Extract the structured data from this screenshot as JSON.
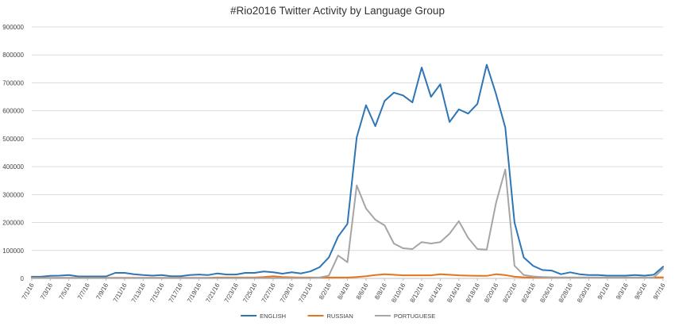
{
  "chart_data": {
    "type": "line",
    "title": "#Rio2016 Twitter Activity by Language Group",
    "xlabel": "",
    "ylabel": "",
    "ylim": [
      0,
      900000
    ],
    "yticks": [
      "0",
      "100000",
      "200000",
      "300000",
      "400000",
      "500000",
      "600000",
      "700000",
      "800000",
      "900000"
    ],
    "x": [
      "7/1/16",
      "7/2/16",
      "7/3/16",
      "7/4/16",
      "7/5/16",
      "7/6/16",
      "7/7/16",
      "7/8/16",
      "7/9/16",
      "7/10/16",
      "7/11/16",
      "7/12/16",
      "7/13/16",
      "7/14/16",
      "7/15/16",
      "7/16/16",
      "7/17/16",
      "7/18/16",
      "7/19/16",
      "7/20/16",
      "7/21/16",
      "7/22/16",
      "7/23/16",
      "7/24/16",
      "7/25/16",
      "7/26/16",
      "7/27/16",
      "7/28/16",
      "7/29/16",
      "7/30/16",
      "7/31/16",
      "8/1/16",
      "8/2/16",
      "8/3/16",
      "8/4/16",
      "8/5/16",
      "8/6/16",
      "8/7/16",
      "8/8/16",
      "8/9/16",
      "8/10/16",
      "8/11/16",
      "8/12/16",
      "8/13/16",
      "8/14/16",
      "8/15/16",
      "8/16/16",
      "8/17/16",
      "8/18/16",
      "8/19/16",
      "8/20/16",
      "8/21/16",
      "8/22/16",
      "8/23/16",
      "8/24/16",
      "8/25/16",
      "8/26/16",
      "8/27/16",
      "8/28/16",
      "8/29/16",
      "8/30/16",
      "8/31/16",
      "9/1/16",
      "9/2/16",
      "9/3/16",
      "9/4/16",
      "9/5/16",
      "9/6/16",
      "9/7/16"
    ],
    "xtick_labels": [
      "7/1/16",
      "7/3/16",
      "7/5/16",
      "7/7/16",
      "7/9/16",
      "7/11/16",
      "7/13/16",
      "7/15/16",
      "7/17/16",
      "7/19/16",
      "7/21/16",
      "7/23/16",
      "7/25/16",
      "7/27/16",
      "7/29/16",
      "7/31/16",
      "8/2/16",
      "8/4/16",
      "8/6/16",
      "8/8/16",
      "8/10/16",
      "8/12/16",
      "8/14/16",
      "8/16/16",
      "8/18/16",
      "8/20/16",
      "8/22/16",
      "8/24/16",
      "8/26/16",
      "8/28/16",
      "8/30/16",
      "9/1/16",
      "9/3/16",
      "9/5/16",
      "9/7/16"
    ],
    "series": [
      {
        "name": "ENGLISH",
        "color": "#2e75b6",
        "values": [
          6000,
          6000,
          9000,
          10000,
          12000,
          7000,
          7000,
          7000,
          7000,
          20000,
          20000,
          15000,
          12000,
          10000,
          12000,
          8000,
          8000,
          12000,
          14000,
          12000,
          18000,
          14000,
          14000,
          20000,
          20000,
          25000,
          22000,
          17000,
          22000,
          18000,
          25000,
          40000,
          75000,
          150000,
          195000,
          505000,
          620000,
          545000,
          635000,
          665000,
          655000,
          630000,
          755000,
          650000,
          695000,
          560000,
          605000,
          590000,
          625000,
          765000,
          660000,
          540000,
          200000,
          75000,
          45000,
          30000,
          28000,
          15000,
          22000,
          15000,
          12000,
          12000,
          10000,
          10000,
          10000,
          12000,
          10000,
          13000,
          42000
        ]
      },
      {
        "name": "RUSSIAN",
        "color": "#e8731a",
        "values": [
          2000,
          2000,
          2000,
          2000,
          2000,
          2000,
          2000,
          2000,
          2000,
          2000,
          2000,
          2000,
          2000,
          2000,
          2000,
          2000,
          2000,
          2000,
          2000,
          2000,
          3000,
          3000,
          3000,
          3000,
          3000,
          5000,
          8000,
          5000,
          4000,
          3000,
          3000,
          3000,
          3000,
          3000,
          3000,
          5000,
          8000,
          12000,
          15000,
          13000,
          11000,
          11000,
          11000,
          11000,
          15000,
          13000,
          11000,
          10000,
          9000,
          9000,
          15000,
          12000,
          6000,
          4000,
          3000,
          3000,
          3000,
          3000,
          3000,
          3000,
          3000,
          3000,
          3000,
          3000,
          3000,
          3000,
          3000,
          3000,
          4000
        ]
      },
      {
        "name": "PORTUGUESE",
        "color": "#a5a5a5",
        "values": [
          1000,
          1000,
          1000,
          1000,
          1000,
          1000,
          1000,
          1000,
          1000,
          1000,
          1000,
          1000,
          1000,
          1000,
          1000,
          1000,
          1000,
          1000,
          1000,
          1000,
          1000,
          1000,
          1000,
          1000,
          1000,
          1000,
          1000,
          1000,
          1000,
          1000,
          1000,
          3000,
          10000,
          82000,
          58000,
          333000,
          250000,
          210000,
          190000,
          125000,
          108000,
          105000,
          130000,
          125000,
          130000,
          160000,
          205000,
          145000,
          105000,
          103000,
          270000,
          390000,
          45000,
          12000,
          7000,
          5000,
          4000,
          3000,
          3000,
          3000,
          3000,
          3000,
          3000,
          3000,
          3000,
          3000,
          3000,
          3000,
          35000
        ]
      }
    ],
    "legend_position": "bottom",
    "grid": true
  }
}
